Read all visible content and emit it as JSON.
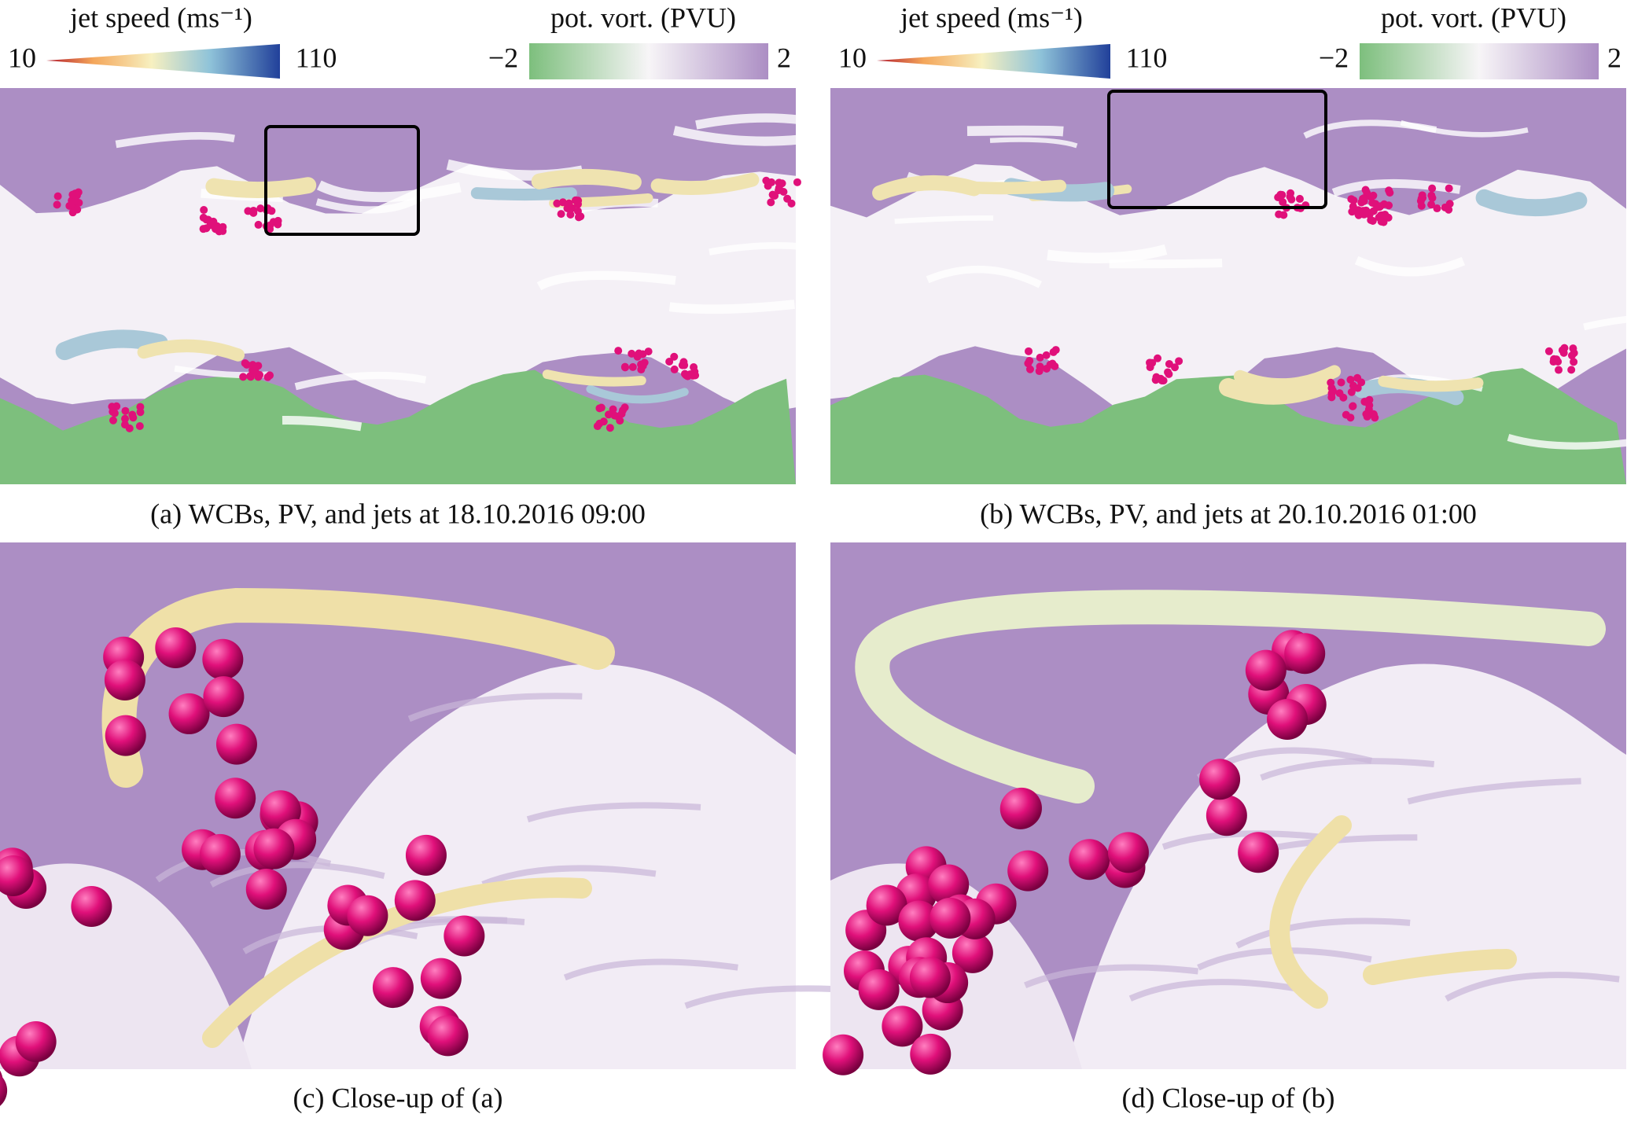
{
  "panels": [
    {
      "legends": [
        {
          "title": "jet speed (ms⁻¹)",
          "min": "10",
          "max": "110"
        },
        {
          "title": "pot. vort. (PVU)",
          "min": "−2",
          "max": "2"
        }
      ],
      "caption": "(a) WCBs, PV, and jets at 18.10.2016 09:00"
    },
    {
      "legends": [
        {
          "title": "jet speed (ms⁻¹)",
          "min": "10",
          "max": "110"
        },
        {
          "title": "pot. vort. (PVU)",
          "min": "−2",
          "max": "2"
        }
      ],
      "caption": "(b) WCBs, PV, and jets at 20.10.2016 01:00"
    }
  ],
  "closeups": [
    {
      "caption": "(c) Close-up of (a)"
    },
    {
      "caption": "(d) Close-up of (b)"
    }
  ]
}
